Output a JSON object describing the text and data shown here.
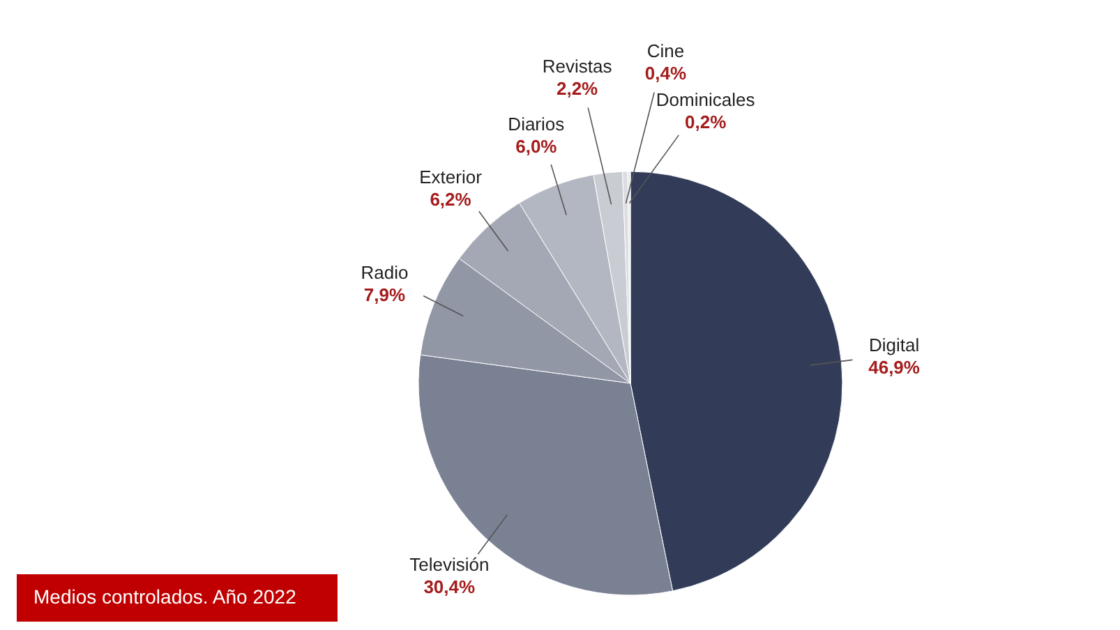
{
  "chart_data": {
    "type": "pie",
    "categories": [
      "Digital",
      "Televisión",
      "Radio",
      "Exterior",
      "Diarios",
      "Revistas",
      "Cine",
      "Dominicales"
    ],
    "values": [
      46.9,
      30.4,
      7.9,
      6.2,
      6.0,
      2.2,
      0.4,
      0.2
    ],
    "colors": [
      "#323c58",
      "#7a8193",
      "#9297a6",
      "#a3a8b4",
      "#b3b7c1",
      "#c9ccd3",
      "#dcdde2",
      "#e8e9ec"
    ],
    "value_labels": [
      "46,9%",
      "30,4%",
      "7,9%",
      "6,2%",
      "6,0%",
      "2,2%",
      "0,4%",
      "0,2%"
    ],
    "annotations": [
      "Medios controlados. Año 2022"
    ],
    "legend": false
  }
}
